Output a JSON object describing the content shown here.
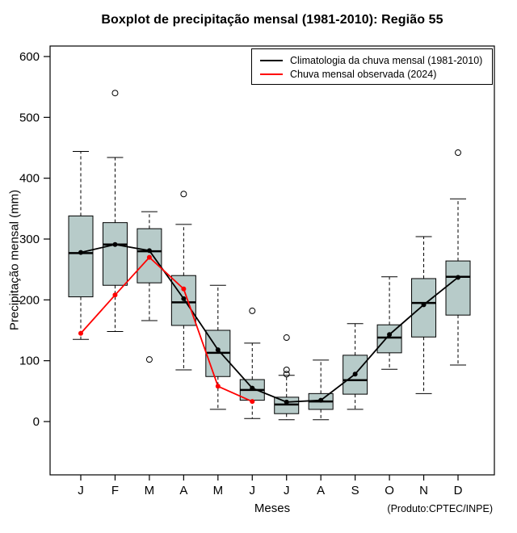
{
  "credit": "(Produto:CPTEC/INPE)",
  "chart_data": {
    "type": "boxplot",
    "title": "Boxplot de precipitação mensal (1981-2010): Região 55",
    "xlabel": "Meses",
    "ylabel": "Precipitação mensal (mm)",
    "ylim": [
      0,
      600
    ],
    "yticks": [
      0,
      100,
      200,
      300,
      400,
      500,
      600
    ],
    "categories": [
      "J",
      "F",
      "M",
      "A",
      "M",
      "J",
      "J",
      "A",
      "S",
      "O",
      "N",
      "D"
    ],
    "grid": false,
    "legend_position": "top-right",
    "box_fill": "#b7cbc9",
    "boxes": [
      {
        "month": "J",
        "low": 135,
        "q1": 205,
        "median": 277,
        "q3": 338,
        "high": 444,
        "outliers": []
      },
      {
        "month": "F",
        "low": 148,
        "q1": 224,
        "median": 291,
        "q3": 327,
        "high": 434,
        "outliers": [
          540
        ]
      },
      {
        "month": "M",
        "low": 166,
        "q1": 228,
        "median": 280,
        "q3": 317,
        "high": 345,
        "outliers": [
          102
        ]
      },
      {
        "month": "A",
        "low": 85,
        "q1": 158,
        "median": 196,
        "q3": 240,
        "high": 324,
        "outliers": [
          374
        ]
      },
      {
        "month": "M",
        "low": 20,
        "q1": 74,
        "median": 113,
        "q3": 150,
        "high": 224,
        "outliers": []
      },
      {
        "month": "J",
        "low": 5,
        "q1": 35,
        "median": 52,
        "q3": 69,
        "high": 129,
        "outliers": [
          182
        ]
      },
      {
        "month": "J",
        "low": 3,
        "q1": 13,
        "median": 28,
        "q3": 40,
        "high": 76,
        "outliers": [
          138,
          85,
          78
        ]
      },
      {
        "month": "A",
        "low": 3,
        "q1": 20,
        "median": 33,
        "q3": 46,
        "high": 101,
        "outliers": []
      },
      {
        "month": "S",
        "low": 20,
        "q1": 45,
        "median": 68,
        "q3": 109,
        "high": 161,
        "outliers": []
      },
      {
        "month": "O",
        "low": 86,
        "q1": 113,
        "median": 138,
        "q3": 159,
        "high": 238,
        "outliers": []
      },
      {
        "month": "N",
        "low": 46,
        "q1": 139,
        "median": 195,
        "q3": 235,
        "high": 304,
        "outliers": []
      },
      {
        "month": "D",
        "low": 93,
        "q1": 175,
        "median": 238,
        "q3": 264,
        "high": 366,
        "outliers": [
          442
        ]
      }
    ],
    "series": [
      {
        "name": "Climatologia da chuva mensal (1981-2010)",
        "color": "#000000",
        "values": [
          278,
          291,
          281,
          202,
          118,
          55,
          32,
          35,
          78,
          143,
          192,
          237
        ]
      },
      {
        "name": "Chuva mensal observada (2024)",
        "color": "#ff0000",
        "values": [
          145,
          208,
          270,
          218,
          58,
          33,
          null,
          null,
          null,
          null,
          null,
          null
        ]
      }
    ]
  }
}
